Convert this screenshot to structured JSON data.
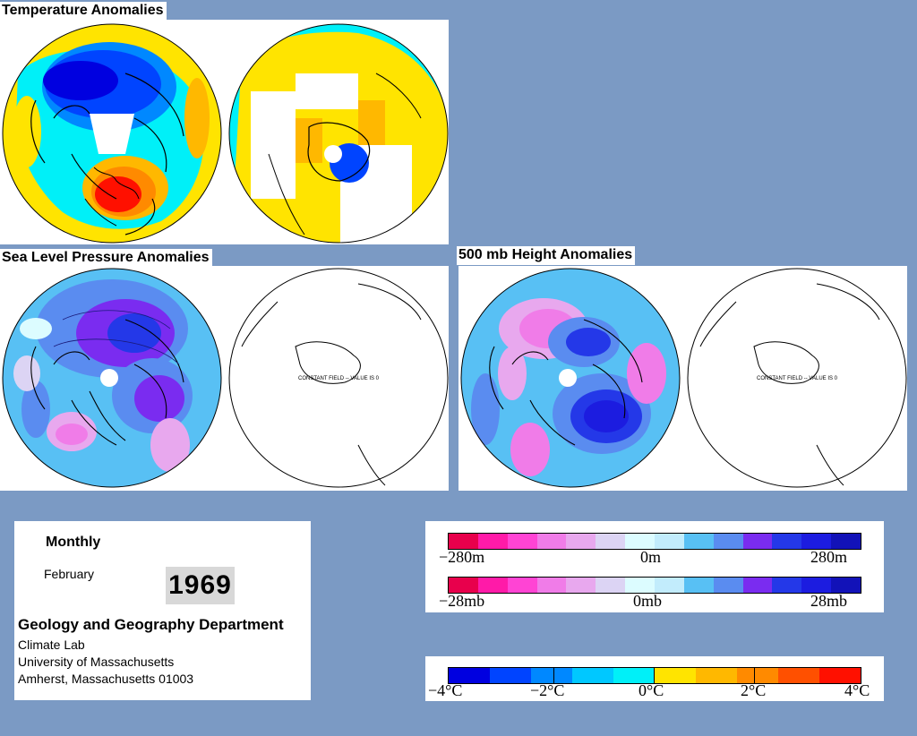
{
  "headers": {
    "temperature": "Temperature Anomalies",
    "slp": "Sea Level Pressure Anomalies",
    "height500": "500 mb Height Anomalies"
  },
  "maps": {
    "slp_south_note": "CONSTANT FIELD -- VALUE IS 0",
    "height_south_note": "CONSTANT FIELD -- VALUE IS 0"
  },
  "info": {
    "period": "Monthly",
    "month": "February",
    "year": "1969",
    "department": "Geology and Geography Department",
    "lab": "Climate Lab",
    "university": "University of Massachusetts",
    "address": "Amherst, Massachusetts 01003"
  },
  "legends": {
    "height": {
      "left": "−280m",
      "mid": "0m",
      "right": "280m"
    },
    "pressure": {
      "left": "−28mb",
      "mid": "0mb",
      "right": "28mb"
    },
    "temperature": {
      "t1": "−4°C",
      "t2": "−2°C",
      "t3": "0°C",
      "t4": "2°C",
      "t5": "4°C"
    }
  },
  "colors": {
    "background": "#7b9ac4",
    "anomaly_scale": [
      "#e8004c",
      "#ff1aa8",
      "#ff44d4",
      "#f07ce8",
      "#e8a8ee",
      "#dcd4f4",
      "#dcfcff",
      "#c2ecfc",
      "#58c0f4",
      "#5a8cf0",
      "#7a2cf0",
      "#2438e8",
      "#1c1ce0",
      "#1212b8"
    ],
    "temperature_scale": [
      "#0000e0",
      "#0044ff",
      "#0088ff",
      "#00c8ff",
      "#00f0f8",
      "#ffe400",
      "#ffb800",
      "#ff8a00",
      "#ff5000",
      "#ff1000"
    ]
  }
}
